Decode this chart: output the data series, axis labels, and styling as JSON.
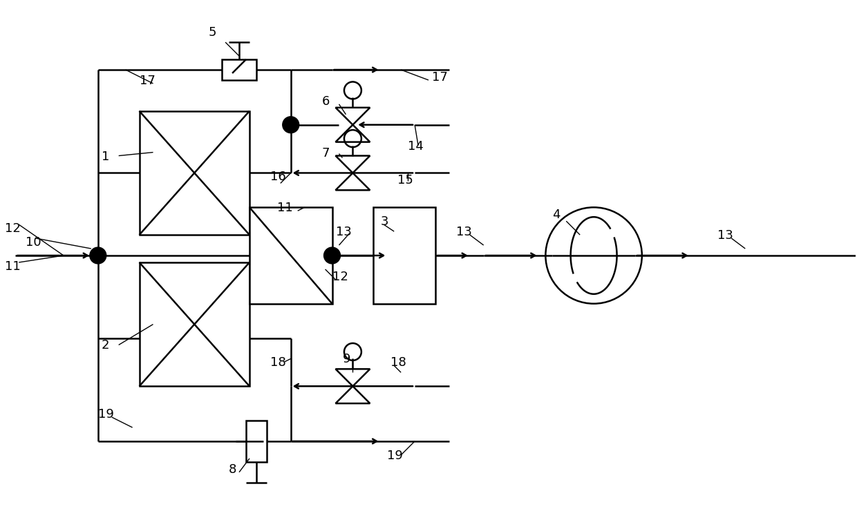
{
  "bg_color": "#ffffff",
  "line_color": "#000000",
  "lw_main": 1.8,
  "lw_leader": 1.0,
  "figsize": [
    12.4,
    7.4
  ],
  "dpi": 100,
  "fs": 13
}
